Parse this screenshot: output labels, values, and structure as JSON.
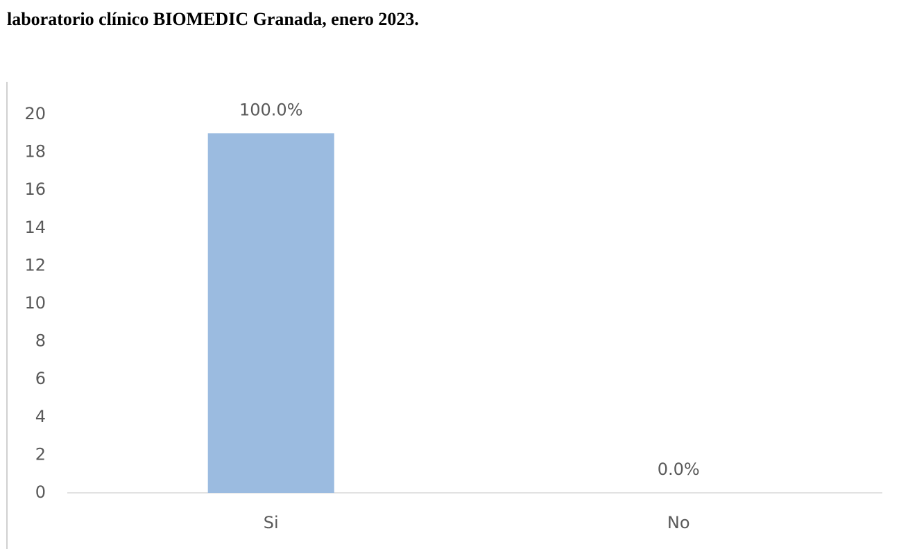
{
  "chart_data": {
    "type": "bar",
    "title": "laboratorio clínico BIOMEDIC Granada, enero 2023.",
    "categories": [
      "Si",
      "No"
    ],
    "values": [
      19,
      0
    ],
    "annotations": [
      "100.0%",
      "0.0%"
    ],
    "color": "#9bbbe0",
    "ylim": [
      0,
      20
    ],
    "yticks": [
      0,
      2,
      4,
      6,
      8,
      10,
      12,
      14,
      16,
      18,
      20
    ],
    "grid": false
  }
}
